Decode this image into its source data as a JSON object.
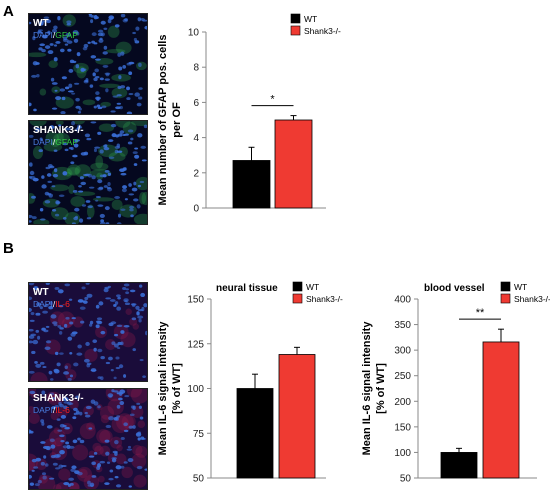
{
  "panels": {
    "A": {
      "letter": "A",
      "images": [
        {
          "title": "WT",
          "stain_a": "DAPI",
          "sep": "/",
          "stain_b": "GFAP",
          "stain_b_color": "#33cc44"
        },
        {
          "title": "SHANK3-/-",
          "stain_a": "DAPI",
          "sep": "/",
          "stain_b": "GFAP",
          "stain_b_color": "#33cc44"
        }
      ]
    },
    "B": {
      "letter": "B",
      "images": [
        {
          "title": "WT",
          "stain_a": "DAPI",
          "sep": "/",
          "stain_b": "IL-6",
          "stain_b_color": "#ff2020"
        },
        {
          "title": "SHANK3-/-",
          "stain_a": "DAPI",
          "sep": "/",
          "stain_b": "IL-6",
          "stain_b_color": "#ff2020"
        }
      ]
    }
  },
  "colors": {
    "wt": "#000000",
    "ko": "#ef3a32",
    "dapi": "#3a6fd8"
  },
  "chart_data": [
    {
      "id": "gfap",
      "type": "bar",
      "title": "",
      "ylabel_line1": "Mean number of GFAP pos. cells",
      "ylabel_line2": "per OF",
      "ylim": [
        0,
        10
      ],
      "yticks": [
        0,
        2,
        4,
        6,
        8,
        10
      ],
      "categories": [
        "WT",
        "Shank3-/-"
      ],
      "values": [
        2.7,
        5.0
      ],
      "errors": [
        0.75,
        0.25
      ],
      "legend": [
        "WT",
        "Shank3-/-"
      ],
      "significance": "*"
    },
    {
      "id": "il6_neural",
      "type": "bar",
      "title": "neural tissue",
      "ylabel_line1": "Mean IL-6 signal intensity",
      "ylabel_line2": "[% of WT]",
      "ylim": [
        50,
        150
      ],
      "yticks": [
        50,
        75,
        100,
        125,
        150
      ],
      "categories": [
        "WT",
        "Shank3-/-"
      ],
      "values": [
        100,
        119
      ],
      "errors": [
        8,
        4
      ],
      "legend": [
        "WT",
        "Shank3-/-"
      ],
      "significance": ""
    },
    {
      "id": "il6_vessel",
      "type": "bar",
      "title": "blood vessel",
      "ylabel_line1": "Mean IL-6 signal intensity",
      "ylabel_line2": "[% of WT]",
      "ylim": [
        50,
        400
      ],
      "yticks": [
        50,
        100,
        150,
        200,
        250,
        300,
        350,
        400
      ],
      "categories": [
        "WT",
        "Shank3-/-"
      ],
      "values": [
        100,
        316
      ],
      "errors": [
        8,
        25
      ],
      "legend": [
        "WT",
        "Shank3-/-"
      ],
      "significance": "**"
    }
  ]
}
